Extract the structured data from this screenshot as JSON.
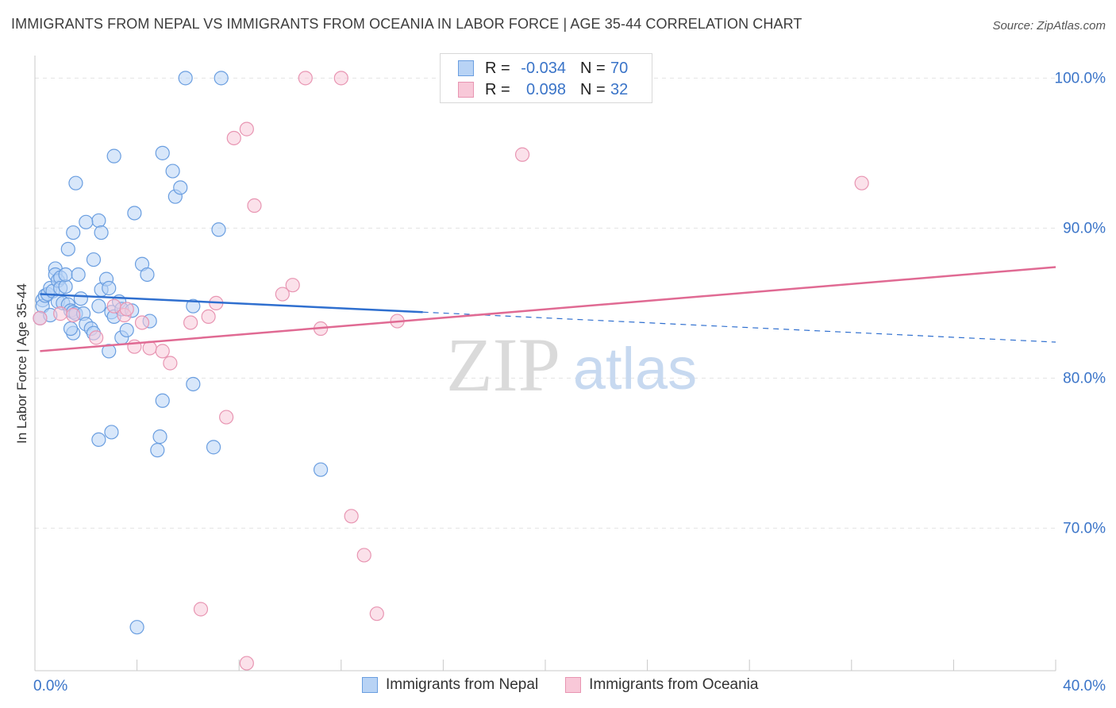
{
  "header": {
    "title": "IMMIGRANTS FROM NEPAL VS IMMIGRANTS FROM OCEANIA IN LABOR FORCE | AGE 35-44 CORRELATION CHART",
    "source": "Source: ZipAtlas.com"
  },
  "watermark": {
    "zip": "ZIP",
    "atlas": "atlas"
  },
  "colors": {
    "nepal_fill": "#b8d3f5",
    "nepal_stroke": "#6a9ee0",
    "nepal_line": "#2f6fcf",
    "oceania_fill": "#f8c8d8",
    "oceania_stroke": "#e895b2",
    "oceania_line": "#e06a93",
    "axis_text": "#3a74c8",
    "grid": "#e3e3e3"
  },
  "legend": {
    "rows": [
      {
        "r_label": "R =",
        "r_value": "-0.034",
        "n_label": "N =",
        "n_value": "70"
      },
      {
        "r_label": "R =",
        "r_value": "0.098",
        "n_label": "N =",
        "n_value": "32"
      }
    ]
  },
  "bottom_legend": {
    "nepal": "Immigrants from Nepal",
    "oceania": "Immigrants from Oceania"
  },
  "chart_data": {
    "type": "scatter",
    "title": "IMMIGRANTS FROM NEPAL VS IMMIGRANTS FROM OCEANIA IN LABOR FORCE | AGE 35-44 CORRELATION CHART",
    "xlabel": "",
    "ylabel": "In Labor Force | Age 35-44",
    "xlim": [
      0,
      40
    ],
    "ylim": [
      60.5,
      101.5
    ],
    "x_tick_labels": [
      {
        "value": 0,
        "label": "0.0%"
      },
      {
        "value": 40,
        "label": "40.0%"
      }
    ],
    "x_minor_ticks": [
      4,
      8,
      12,
      16,
      20,
      24,
      28,
      32,
      36,
      40
    ],
    "y_ticks": [
      {
        "value": 100,
        "label": "100.0%"
      },
      {
        "value": 90,
        "label": "90.0%"
      },
      {
        "value": 80,
        "label": "80.0%"
      },
      {
        "value": 70,
        "label": "70.0%"
      }
    ],
    "grid": true,
    "series": [
      {
        "name": "Immigrants from Nepal",
        "r": -0.034,
        "n": 70,
        "trend": {
          "x0": 0.2,
          "y0": 85.6,
          "x1": 15.2,
          "y1": 84.4,
          "dash_to_x": 40,
          "dash_to_y": 82.4
        },
        "points": [
          [
            0.2,
            84.0
          ],
          [
            0.3,
            85.2
          ],
          [
            0.3,
            84.8
          ],
          [
            0.4,
            85.5
          ],
          [
            0.5,
            85.6
          ],
          [
            0.6,
            86.0
          ],
          [
            0.6,
            84.2
          ],
          [
            0.7,
            85.8
          ],
          [
            0.8,
            87.3
          ],
          [
            0.8,
            86.9
          ],
          [
            0.9,
            85.1
          ],
          [
            0.9,
            86.5
          ],
          [
            1.0,
            86.7
          ],
          [
            1.0,
            86.0
          ],
          [
            1.1,
            85.0
          ],
          [
            1.2,
            86.1
          ],
          [
            1.2,
            86.9
          ],
          [
            1.3,
            84.9
          ],
          [
            1.4,
            84.5
          ],
          [
            1.5,
            84.4
          ],
          [
            1.5,
            83.0
          ],
          [
            1.6,
            84.3
          ],
          [
            1.7,
            86.9
          ],
          [
            1.8,
            85.3
          ],
          [
            1.3,
            88.6
          ],
          [
            1.4,
            83.3
          ],
          [
            1.5,
            89.7
          ],
          [
            1.6,
            93.0
          ],
          [
            1.9,
            84.3
          ],
          [
            2.0,
            83.6
          ],
          [
            2.2,
            83.3
          ],
          [
            2.3,
            87.9
          ],
          [
            2.3,
            83.0
          ],
          [
            2.5,
            84.8
          ],
          [
            2.6,
            85.9
          ],
          [
            2.5,
            90.5
          ],
          [
            2.6,
            89.7
          ],
          [
            2.0,
            90.4
          ],
          [
            2.9,
            81.8
          ],
          [
            2.8,
            86.6
          ],
          [
            2.9,
            86.0
          ],
          [
            3.0,
            84.4
          ],
          [
            3.1,
            84.1
          ],
          [
            3.3,
            85.1
          ],
          [
            3.4,
            84.6
          ],
          [
            3.1,
            94.8
          ],
          [
            3.4,
            82.7
          ],
          [
            3.6,
            83.2
          ],
          [
            3.8,
            84.5
          ],
          [
            3.9,
            91.0
          ],
          [
            4.2,
            87.6
          ],
          [
            5.0,
            78.5
          ],
          [
            4.4,
            86.9
          ],
          [
            4.5,
            83.8
          ],
          [
            5.0,
            95.0
          ],
          [
            5.4,
            93.8
          ],
          [
            5.5,
            92.1
          ],
          [
            5.7,
            92.7
          ],
          [
            6.2,
            79.6
          ],
          [
            6.2,
            84.8
          ],
          [
            7.2,
            89.9
          ],
          [
            7.0,
            75.4
          ],
          [
            5.9,
            100.0
          ],
          [
            7.3,
            100.0
          ],
          [
            3.0,
            76.4
          ],
          [
            2.5,
            75.9
          ],
          [
            4.9,
            76.1
          ],
          [
            4.8,
            75.2
          ],
          [
            4.0,
            63.4
          ],
          [
            11.2,
            73.9
          ]
        ]
      },
      {
        "name": "Immigrants from Oceania",
        "r": 0.098,
        "n": 32,
        "trend": {
          "x0": 0.2,
          "y0": 81.8,
          "x1": 40,
          "y1": 87.4
        },
        "points": [
          [
            0.2,
            84.0
          ],
          [
            1.0,
            84.3
          ],
          [
            1.5,
            84.2
          ],
          [
            2.4,
            82.7
          ],
          [
            3.1,
            84.8
          ],
          [
            3.5,
            84.2
          ],
          [
            3.6,
            84.6
          ],
          [
            3.9,
            82.1
          ],
          [
            4.2,
            83.7
          ],
          [
            4.5,
            82.0
          ],
          [
            5.0,
            81.8
          ],
          [
            5.3,
            81.0
          ],
          [
            6.1,
            83.7
          ],
          [
            6.8,
            84.1
          ],
          [
            7.1,
            85.0
          ],
          [
            7.8,
            96.0
          ],
          [
            8.3,
            96.6
          ],
          [
            8.6,
            91.5
          ],
          [
            9.7,
            85.6
          ],
          [
            10.1,
            86.2
          ],
          [
            11.2,
            83.3
          ],
          [
            12.4,
            70.8
          ],
          [
            14.2,
            83.8
          ],
          [
            13.4,
            64.3
          ],
          [
            12.9,
            68.2
          ],
          [
            10.6,
            100.0
          ],
          [
            19.1,
            94.9
          ],
          [
            32.4,
            93.0
          ],
          [
            7.5,
            77.4
          ],
          [
            6.5,
            64.6
          ],
          [
            8.3,
            61.0
          ],
          [
            12.0,
            100.0
          ]
        ]
      }
    ]
  }
}
